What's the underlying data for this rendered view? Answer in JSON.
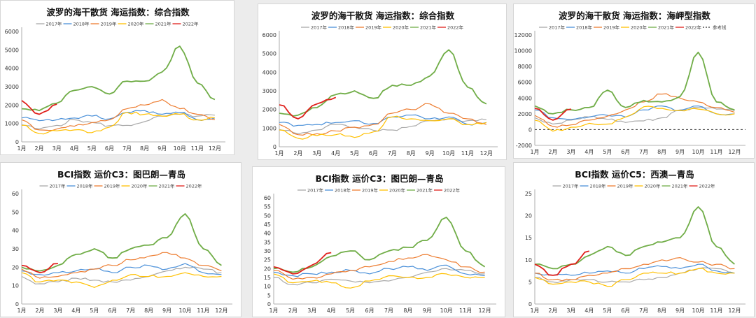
{
  "colors": {
    "2017": "#a9a9a9",
    "2018": "#4a90d9",
    "2019": "#ed7d31",
    "2020": "#ffc000",
    "2021": "#70ad47",
    "2022": "#e0201b",
    "ref": "#333333"
  },
  "chart_data": [
    {
      "type": "line",
      "title": "波罗的海干散货 海运指数：综合指数",
      "ylim": [
        0,
        6000
      ],
      "yticks": [
        0,
        1000,
        2000,
        3000,
        4000,
        5000,
        6000
      ],
      "months": [
        "1月",
        "2月",
        "3月",
        "4月",
        "5月",
        "6月",
        "7月",
        "8月",
        "9月",
        "10月",
        "11月",
        "12月"
      ],
      "legend": [
        "2017年",
        "2018年",
        "2019年",
        "2020年",
        "2021年",
        "2022年"
      ],
      "series": [
        {
          "name": "2017年",
          "key": "2017",
          "values": [
            930,
            700,
            900,
            1200,
            1050,
            880,
            900,
            1100,
            1400,
            1500,
            1400,
            1450
          ]
        },
        {
          "name": "2018年",
          "key": "2018",
          "values": [
            1300,
            1150,
            1200,
            1300,
            1400,
            1250,
            1600,
            1700,
            1500,
            1600,
            1200,
            1300
          ]
        },
        {
          "name": "2019年",
          "key": "2019",
          "values": [
            1200,
            650,
            700,
            850,
            1050,
            1200,
            1800,
            2000,
            2300,
            1800,
            1500,
            1200
          ]
        },
        {
          "name": "2020年",
          "key": "2020",
          "values": [
            900,
            450,
            600,
            650,
            500,
            800,
            1600,
            1500,
            1400,
            1500,
            1200,
            1300
          ]
        },
        {
          "name": "2021年",
          "key": "2021",
          "values": [
            1800,
            1700,
            2100,
            2800,
            3000,
            2600,
            3300,
            3300,
            3800,
            5200,
            3200,
            2300
          ]
        },
        {
          "name": "2022年",
          "key": "2022",
          "values": [
            2250,
            1500,
            2050
          ]
        }
      ]
    },
    {
      "type": "line",
      "title": "波罗的海干散货 海运指数：综合指数",
      "ylim": [
        0,
        6000
      ],
      "yticks": [
        0,
        1000,
        2000,
        3000,
        4000,
        5000,
        6000
      ],
      "months": [
        "1月",
        "2月",
        "3月",
        "4月",
        "5月",
        "6月",
        "7月",
        "8月",
        "9月",
        "10月",
        "11月",
        "12月"
      ],
      "legend": [
        "2017年",
        "2018年",
        "2019年",
        "2020年",
        "2021年",
        "2022年"
      ],
      "series": [
        {
          "name": "2017年",
          "key": "2017",
          "values": [
            930,
            700,
            900,
            1200,
            1050,
            880,
            900,
            1100,
            1400,
            1500,
            1400,
            1450
          ]
        },
        {
          "name": "2018年",
          "key": "2018",
          "values": [
            1300,
            1150,
            1200,
            1300,
            1400,
            1250,
            1600,
            1700,
            1500,
            1600,
            1200,
            1300
          ]
        },
        {
          "name": "2019年",
          "key": "2019",
          "values": [
            1200,
            650,
            700,
            850,
            1050,
            1200,
            1800,
            2000,
            2300,
            1800,
            1500,
            1200
          ]
        },
        {
          "name": "2020年",
          "key": "2020",
          "values": [
            900,
            450,
            600,
            650,
            500,
            800,
            1600,
            1500,
            1400,
            1500,
            1200,
            1300
          ]
        },
        {
          "name": "2021年",
          "key": "2021",
          "values": [
            1800,
            1700,
            2100,
            2800,
            3000,
            2600,
            3300,
            3300,
            3800,
            5200,
            3200,
            2300
          ]
        },
        {
          "name": "2022年",
          "key": "2022",
          "values": [
            2250,
            1500,
            2300,
            2650
          ]
        }
      ]
    },
    {
      "type": "line",
      "title": "波罗的海干散货 海运指数：海岬型指数",
      "ylim": [
        -2000,
        12000
      ],
      "yticks": [
        -2000,
        0,
        2000,
        4000,
        6000,
        8000,
        10000,
        12000
      ],
      "months": [
        "1月",
        "2月",
        "3月",
        "4月",
        "5月",
        "6月",
        "7月",
        "8月",
        "9月",
        "10月",
        "11月",
        "12月"
      ],
      "legend": [
        "2017年",
        "2018年",
        "2019年",
        "2020年",
        "2021年",
        "2022年",
        "参考线"
      ],
      "ref_value": 0,
      "series": [
        {
          "name": "2017年",
          "key": "2017",
          "values": [
            1500,
            700,
            1200,
            1600,
            1300,
            900,
            1100,
            1500,
            2500,
            2800,
            2600,
            2400
          ]
        },
        {
          "name": "2018年",
          "key": "2018",
          "values": [
            2500,
            1500,
            1300,
            1600,
            1800,
            1600,
            2500,
            3000,
            2400,
            3000,
            2000,
            2000
          ]
        },
        {
          "name": "2019年",
          "key": "2019",
          "values": [
            1800,
            400,
            600,
            1200,
            1700,
            2500,
            3500,
            4500,
            4000,
            3500,
            2800,
            2200
          ]
        },
        {
          "name": "2020年",
          "key": "2020",
          "values": [
            1200,
            -200,
            300,
            800,
            700,
            1600,
            2900,
            2700,
            2400,
            2600,
            2000,
            2000
          ]
        },
        {
          "name": "2021年",
          "key": "2021",
          "values": [
            3000,
            2000,
            2500,
            2800,
            5000,
            2800,
            3700,
            3500,
            4200,
            9800,
            3500,
            2500
          ]
        },
        {
          "name": "2022年",
          "key": "2022",
          "values": [
            2700,
            1200,
            2600
          ]
        }
      ]
    },
    {
      "type": "line",
      "title": "BCI指数 运价C3：图巴朗—青岛",
      "ylim": [
        0,
        60
      ],
      "yticks": [
        0,
        10,
        20,
        30,
        40,
        50,
        60
      ],
      "months": [
        "1月",
        "2月",
        "3月",
        "4月",
        "5月",
        "6月",
        "7月",
        "8月",
        "9月",
        "10月",
        "11月",
        "12月"
      ],
      "legend": [
        "2017年",
        "2018年",
        "2019年",
        "2020年",
        "2021年",
        "2022年"
      ],
      "series": [
        {
          "name": "2017年",
          "key": "2017",
          "values": [
            15,
            11,
            12,
            14,
            13,
            12,
            13,
            15,
            18,
            20,
            19,
            17
          ]
        },
        {
          "name": "2018年",
          "key": "2018",
          "values": [
            18,
            16,
            17,
            18,
            19,
            17,
            20,
            21,
            19,
            22,
            17,
            16
          ]
        },
        {
          "name": "2019年",
          "key": "2019",
          "values": [
            19,
            14,
            15,
            17,
            19,
            21,
            24,
            26,
            28,
            25,
            21,
            18
          ]
        },
        {
          "name": "2020年",
          "key": "2020",
          "values": [
            17,
            12,
            13,
            12,
            9,
            13,
            16,
            15,
            15,
            17,
            15,
            15
          ]
        },
        {
          "name": "2021年",
          "key": "2021",
          "values": [
            20,
            18,
            21,
            27,
            30,
            25,
            30,
            32,
            36,
            49,
            30,
            21
          ]
        },
        {
          "name": "2022年",
          "key": "2022",
          "values": [
            21,
            17,
            22
          ]
        }
      ]
    },
    {
      "type": "line",
      "title": "BCI指数 运价C3：图巴朗—青岛",
      "ylim": [
        0,
        60
      ],
      "yticks": [
        0,
        5,
        10,
        15,
        20,
        25,
        30,
        35,
        40,
        45,
        50,
        55,
        60
      ],
      "months": [
        "1月",
        "2月",
        "3月",
        "4月",
        "5月",
        "6月",
        "7月",
        "8月",
        "9月",
        "10月",
        "11月",
        "12月"
      ],
      "legend": [
        "2017年",
        "2018年",
        "2019年",
        "2020年",
        "2021年",
        "2022年"
      ],
      "series": [
        {
          "name": "2017年",
          "key": "2017",
          "values": [
            15,
            11,
            12,
            14,
            13,
            12,
            13,
            15,
            18,
            20,
            19,
            17
          ]
        },
        {
          "name": "2018年",
          "key": "2018",
          "values": [
            18,
            16,
            17,
            18,
            19,
            17,
            20,
            21,
            19,
            22,
            17,
            16
          ]
        },
        {
          "name": "2019年",
          "key": "2019",
          "values": [
            19,
            14,
            15,
            17,
            19,
            21,
            24,
            26,
            28,
            25,
            21,
            18
          ]
        },
        {
          "name": "2020年",
          "key": "2020",
          "values": [
            17,
            12,
            13,
            12,
            9,
            13,
            16,
            15,
            15,
            17,
            15,
            15
          ]
        },
        {
          "name": "2021年",
          "key": "2021",
          "values": [
            20,
            18,
            21,
            27,
            30,
            25,
            30,
            32,
            36,
            49,
            30,
            21
          ]
        },
        {
          "name": "2022年",
          "key": "2022",
          "values": [
            21,
            17,
            22,
            29
          ]
        }
      ]
    },
    {
      "type": "line",
      "title": "BCI指数 运价C5：西澳—青岛",
      "ylim": [
        0,
        25
      ],
      "yticks": [
        0,
        5,
        10,
        15,
        20,
        25
      ],
      "months": [
        "1月",
        "2月",
        "3月",
        "4月",
        "5月",
        "6月",
        "7月",
        "8月",
        "9月",
        "10月",
        "11月",
        "12月"
      ],
      "legend": [
        "2017年",
        "2018年",
        "2019年",
        "2020年",
        "2021年",
        "2022年"
      ],
      "series": [
        {
          "name": "2017年",
          "key": "2017",
          "values": [
            6,
            5,
            5.5,
            5.5,
            5,
            5,
            5.5,
            6,
            7,
            8,
            8,
            7
          ]
        },
        {
          "name": "2018年",
          "key": "2018",
          "values": [
            7,
            6.5,
            6.5,
            7,
            7.5,
            7,
            8,
            8.5,
            8,
            9,
            7.5,
            7
          ]
        },
        {
          "name": "2019年",
          "key": "2019",
          "values": [
            7,
            5.5,
            5.5,
            6.5,
            7,
            8,
            9,
            10,
            10.5,
            9.5,
            9,
            8
          ]
        },
        {
          "name": "2020年",
          "key": "2020",
          "values": [
            6,
            4.5,
            5,
            5,
            4,
            5.5,
            7,
            7,
            7,
            8,
            7,
            7
          ]
        },
        {
          "name": "2021年",
          "key": "2021",
          "values": [
            9,
            8,
            9,
            11,
            13,
            11,
            13,
            14,
            15,
            22,
            13,
            9
          ]
        },
        {
          "name": "2022年",
          "key": "2022",
          "values": [
            9,
            6.5,
            9,
            12
          ]
        }
      ]
    }
  ]
}
